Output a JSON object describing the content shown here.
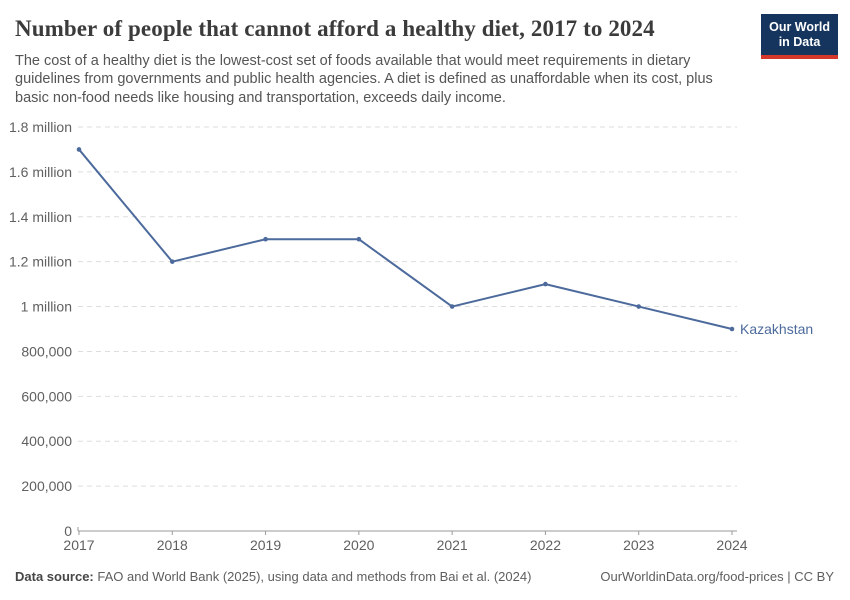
{
  "header": {
    "title": "Number of people that cannot afford a healthy diet, 2017 to 2024",
    "subtitle": "The cost of a healthy diet is the lowest-cost set of foods available that would meet requirements in dietary guidelines from governments and public health agencies. A diet is defined as unaffordable when its cost, plus basic non-food needs like housing and transportation, exceeds daily income.",
    "logo": {
      "line1": "Our World",
      "line2": "in Data"
    }
  },
  "chart_data": {
    "type": "line",
    "title": "Number of people that cannot afford a healthy diet, 2017 to 2024",
    "x": [
      "2017",
      "2018",
      "2019",
      "2020",
      "2021",
      "2022",
      "2023",
      "2024"
    ],
    "series": [
      {
        "name": "Kazakhstan",
        "values": [
          1700000,
          1200000,
          1300000,
          1300000,
          1000000,
          1100000,
          1000000,
          900000
        ],
        "color": "#4c6a9c"
      }
    ],
    "ylim": [
      0,
      1800000
    ],
    "yticks": [
      {
        "value": 0,
        "label": "0"
      },
      {
        "value": 200000,
        "label": "200,000"
      },
      {
        "value": 400000,
        "label": "400,000"
      },
      {
        "value": 600000,
        "label": "600,000"
      },
      {
        "value": 800000,
        "label": "800,000"
      },
      {
        "value": 1000000,
        "label": "1 million"
      },
      {
        "value": 1200000,
        "label": "1.2 million"
      },
      {
        "value": 1400000,
        "label": "1.4 million"
      },
      {
        "value": 1600000,
        "label": "1.6 million"
      },
      {
        "value": 1800000,
        "label": "1.8 million"
      }
    ],
    "grid": "horizontal-dashed",
    "legend": "line-end-label"
  },
  "footer": {
    "source_label": "Data source:",
    "source_text": " FAO and World Bank (2025), using data and methods from Bai et al. (2024)",
    "attribution": "OurWorldinData.org/food-prices | CC BY"
  },
  "colors": {
    "line": "#4c6a9c",
    "grid": "#dddddd",
    "axis": "#9a9a9a",
    "tick_label": "#606060",
    "title": "#3b3b3b",
    "subtitle": "#555555",
    "footer": "#5e5e5e",
    "logo_bg": "#16355e",
    "logo_red": "#d6372b"
  }
}
